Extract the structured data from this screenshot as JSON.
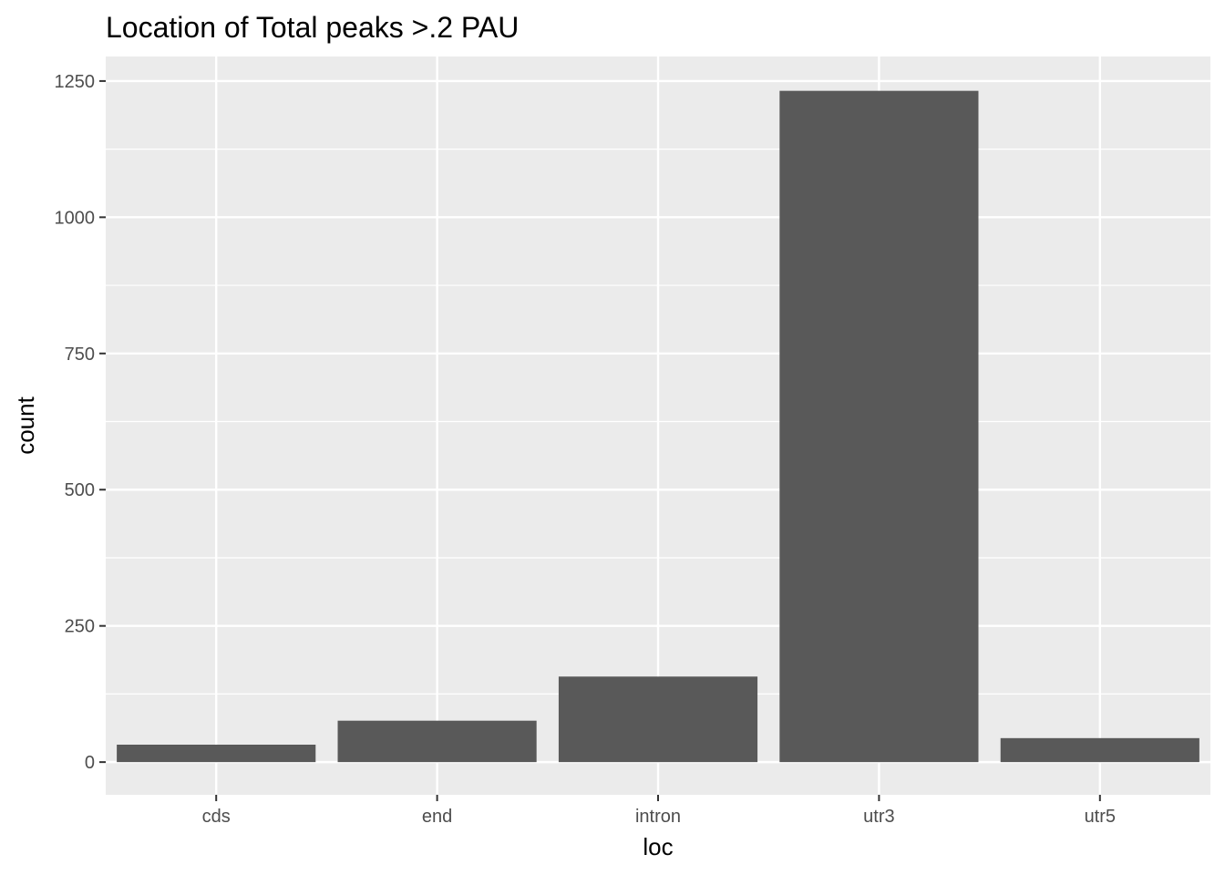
{
  "chart_data": {
    "type": "bar",
    "title": "Location of Total peaks >.2 PAU",
    "xlabel": "loc",
    "ylabel": "count",
    "categories": [
      "cds",
      "end",
      "intron",
      "utr3",
      "utr5"
    ],
    "values": [
      32,
      76,
      157,
      1232,
      44
    ],
    "ylim": [
      -60,
      1295
    ],
    "yticks": [
      0,
      250,
      500,
      750,
      1000,
      1250
    ],
    "ytick_labels": [
      "0",
      "250",
      "500",
      "750",
      "1000",
      "1250"
    ],
    "grid": true,
    "legend": "none",
    "colors": {
      "bar": "#595959",
      "panel": "#ebebeb",
      "grid": "#ffffff"
    }
  }
}
